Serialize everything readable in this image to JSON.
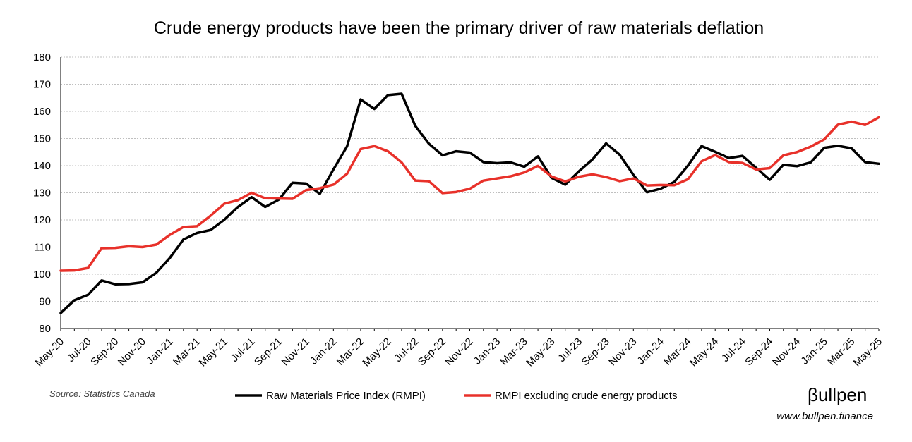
{
  "chart_data": {
    "type": "line",
    "title": "Crude energy products have been the primary driver of raw materials deflation",
    "xlabel": "",
    "ylabel": "",
    "ylim": [
      80,
      180
    ],
    "yticks": [
      80,
      90,
      100,
      110,
      120,
      130,
      140,
      150,
      160,
      170,
      180
    ],
    "grid": true,
    "legend_position": "bottom",
    "x": [
      "May-20",
      "Jun-20",
      "Jul-20",
      "Aug-20",
      "Sep-20",
      "Oct-20",
      "Nov-20",
      "Dec-20",
      "Jan-21",
      "Feb-21",
      "Mar-21",
      "Apr-21",
      "May-21",
      "Jun-21",
      "Jul-21",
      "Aug-21",
      "Sep-21",
      "Oct-21",
      "Nov-21",
      "Dec-21",
      "Jan-22",
      "Feb-22",
      "Mar-22",
      "Apr-22",
      "May-22",
      "Jun-22",
      "Jul-22",
      "Aug-22",
      "Sep-22",
      "Oct-22",
      "Nov-22",
      "Dec-22",
      "Jan-23",
      "Feb-23",
      "Mar-23",
      "Apr-23",
      "May-23",
      "Jun-23",
      "Jul-23",
      "Aug-23",
      "Sep-23",
      "Oct-23",
      "Nov-23",
      "Dec-23",
      "Jan-24",
      "Feb-24",
      "Mar-24",
      "Apr-24",
      "May-24",
      "Jun-24",
      "Jul-24",
      "Aug-24",
      "Sep-24",
      "Oct-24",
      "Nov-24",
      "Dec-24",
      "Jan-25",
      "Feb-25",
      "Mar-25",
      "Apr-25",
      "May-25"
    ],
    "tick_labels": [
      "May-20",
      "Jul-20",
      "Sep-20",
      "Nov-20",
      "Jan-21",
      "Mar-21",
      "May-21",
      "Jul-21",
      "Sep-21",
      "Nov-21",
      "Jan-22",
      "Mar-22",
      "May-22",
      "Jul-22",
      "Sep-22",
      "Nov-22",
      "Jan-23",
      "Mar-23",
      "May-23",
      "Jul-23",
      "Sep-23",
      "Nov-23",
      "Jan-24",
      "Mar-24",
      "May-24",
      "Jul-24",
      "Sep-24",
      "Nov-24",
      "Jan-25",
      "Mar-25",
      "May-25"
    ],
    "series": [
      {
        "name": "Raw Materials Price Index (RMPI)",
        "color": "#000000",
        "values": [
          85.7,
          90.4,
          92.4,
          97.7,
          96.3,
          96.4,
          97.0,
          100.5,
          106.0,
          112.8,
          115.2,
          116.3,
          120.1,
          124.8,
          128.4,
          124.8,
          127.5,
          133.7,
          133.4,
          129.6,
          138.6,
          147.1,
          164.4,
          160.9,
          166.0,
          166.5,
          154.7,
          148.1,
          143.8,
          145.3,
          144.8,
          141.3,
          140.9,
          141.2,
          139.6,
          143.4,
          135.5,
          133.0,
          137.9,
          142.3,
          148.2,
          144.0,
          136.6,
          130.2,
          131.5,
          134.0,
          140.0,
          147.2,
          145.1,
          142.8,
          143.6,
          139.2,
          134.8,
          140.3,
          139.8,
          141.2,
          146.6,
          147.3,
          146.4,
          141.3,
          140.7
        ]
      },
      {
        "name": "RMPI excluding crude energy products",
        "color": "#e8312a",
        "values": [
          101.3,
          101.4,
          102.3,
          109.6,
          109.7,
          110.3,
          110.0,
          110.9,
          114.5,
          117.4,
          117.7,
          121.6,
          126.0,
          127.3,
          130.0,
          128.0,
          127.9,
          127.8,
          131.0,
          131.7,
          133.0,
          137.0,
          146.1,
          147.2,
          145.3,
          141.2,
          134.5,
          134.3,
          129.9,
          130.3,
          131.5,
          134.5,
          135.3,
          136.1,
          137.5,
          139.9,
          136.0,
          134.2,
          135.9,
          136.8,
          135.8,
          134.3,
          135.3,
          132.7,
          132.9,
          132.8,
          135.0,
          141.6,
          143.9,
          141.3,
          141.0,
          138.6,
          139.1,
          143.8,
          145.0,
          147.0,
          149.7,
          155.1,
          156.2,
          155.0,
          157.8
        ]
      }
    ]
  },
  "source_note": "Source: Statistics Canada",
  "brand": {
    "logo_text": "βullpen",
    "url": "www.bullpen.finance"
  }
}
